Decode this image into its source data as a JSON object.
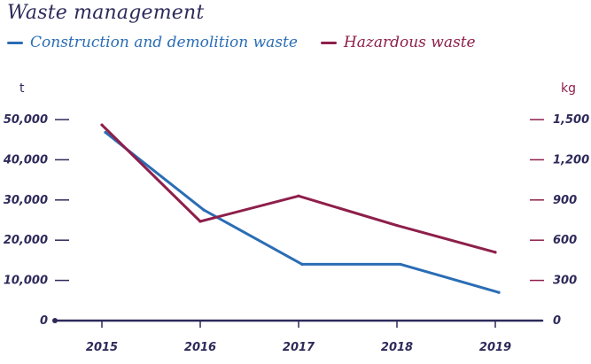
{
  "chart_data": {
    "type": "line",
    "title": "Waste management",
    "categories": [
      "2015",
      "2016",
      "2017",
      "2018",
      "2019"
    ],
    "left_axis": {
      "unit": "t",
      "ticks": [
        "0",
        "10,000",
        "20,000",
        "30,000",
        "40,000",
        "50,000"
      ],
      "ylim": [
        0,
        50000
      ]
    },
    "right_axis": {
      "unit": "kg",
      "ticks": [
        "0",
        "300",
        "600",
        "900",
        "1,200",
        "1,500"
      ],
      "ylim": [
        0,
        1500
      ]
    },
    "series": [
      {
        "name": "Construction and demolition waste",
        "axis": "left",
        "color": "#2a6db5",
        "values": [
          46800,
          27500,
          14000,
          14000,
          7000
        ]
      },
      {
        "name": "Hazardous waste",
        "axis": "right",
        "color": "#8e1f4a",
        "values": [
          1460,
          740,
          930,
          710,
          510
        ]
      }
    ],
    "legend_position": "top-left",
    "grid": false,
    "axis_color": "#2d2a5a",
    "right_tick_color": "#8e1f4a"
  }
}
